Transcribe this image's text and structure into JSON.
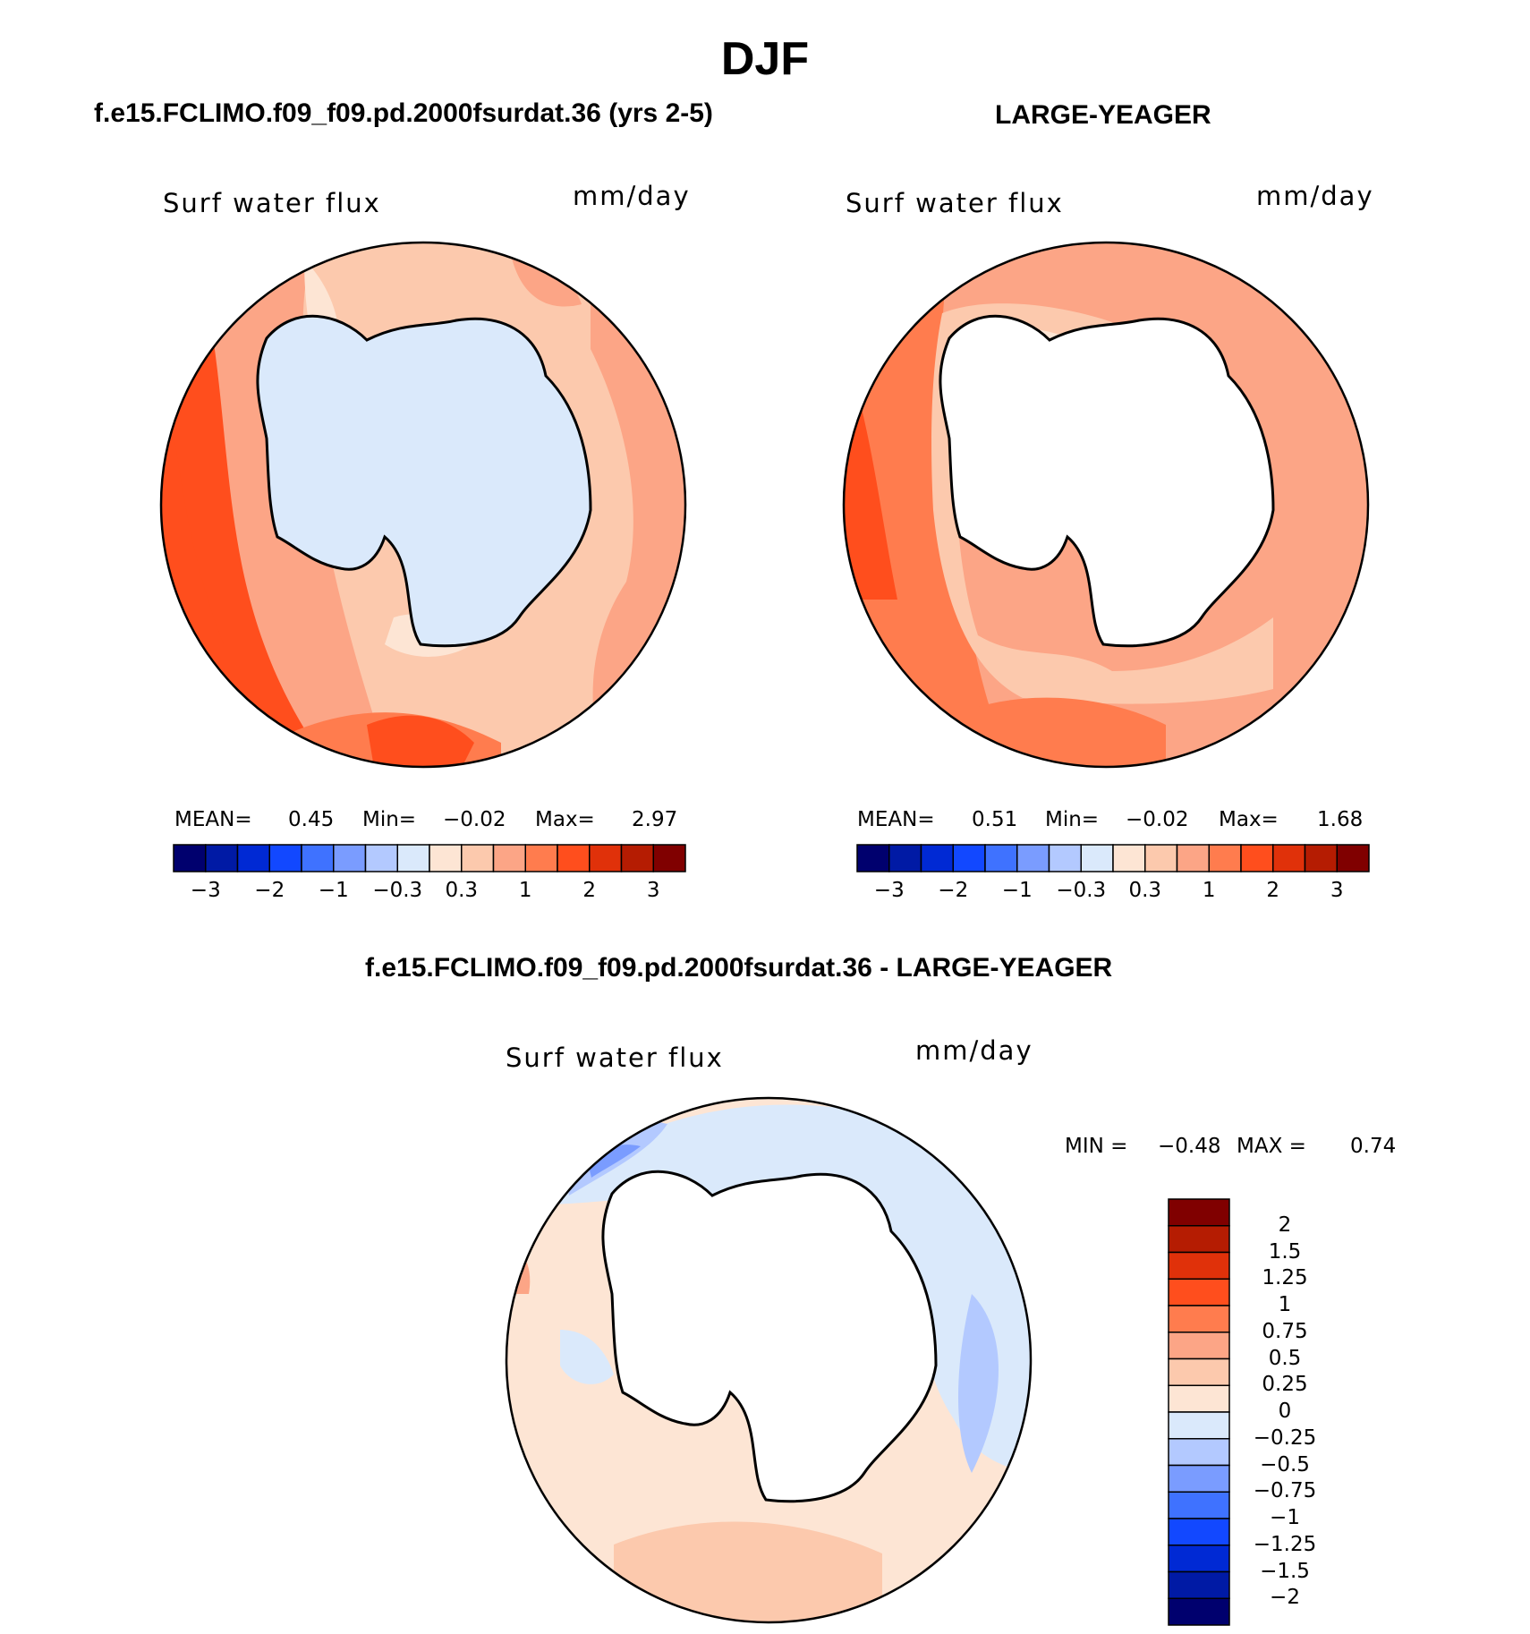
{
  "main_title": "DJF",
  "panels": [
    {
      "case_title": "f.e15.FCLIMO.f09_f09.pd.2000fsurdat.36 (yrs 2-5)",
      "variable": "Surf water flux",
      "units": "mm/day",
      "stats": {
        "mean_label": "MEAN=",
        "mean_value": "0.45",
        "min_label": "Min=",
        "min_value": "−0.02",
        "max_label": "Max=",
        "max_value": "2.97"
      }
    },
    {
      "case_title": "LARGE-YEAGER",
      "variable": "Surf water flux",
      "units": "mm/day",
      "stats": {
        "mean_label": "MEAN=",
        "mean_value": "0.51",
        "min_label": "Min=",
        "min_value": "−0.02",
        "max_label": "Max=",
        "max_value": "1.68"
      }
    }
  ],
  "diff_panel": {
    "case_title": "f.e15.FCLIMO.f09_f09.pd.2000fsurdat.36 - LARGE-YEAGER",
    "variable": "Surf water flux",
    "units": "mm/day",
    "stats": {
      "min_label": "MIN =",
      "min_value": "−0.48",
      "max_label": "MAX =",
      "max_value": "0.74"
    }
  },
  "colorbar_h": {
    "colors": [
      "#00006e",
      "#001aa5",
      "#0029d4",
      "#1248ff",
      "#3f72ff",
      "#7a9cff",
      "#b3c9ff",
      "#dae9fb",
      "#fde5d4",
      "#fcc9ad",
      "#fca586",
      "#ff7c4e",
      "#ff4e1d",
      "#e0310a",
      "#b51c02",
      "#800000"
    ],
    "tick_labels": [
      "−3",
      "−2",
      "−1",
      "−0.3",
      "0.3",
      "1",
      "2",
      "3"
    ]
  },
  "colorbar_v": {
    "colors": [
      "#800000",
      "#b51c02",
      "#e0310a",
      "#ff4e1d",
      "#ff7c4e",
      "#fca586",
      "#fcc9ad",
      "#fde5d4",
      "#dae9fb",
      "#b3c9ff",
      "#7a9cff",
      "#3f72ff",
      "#1248ff",
      "#0029d4",
      "#001aa5",
      "#00006e"
    ],
    "tick_labels": [
      "2",
      "1.5",
      "1.25",
      "1",
      "0.75",
      "0.5",
      "0.25",
      "0",
      "−0.25",
      "−0.5",
      "−0.75",
      "−1",
      "−1.25",
      "−1.5",
      "−2"
    ]
  },
  "map_colors": {
    "ocean_light": "#fde5d4",
    "ocean_mid": "#fcc9ad",
    "ocean_med": "#fca586",
    "ocean_high": "#ff7c4e",
    "ocean_vhigh": "#ff4e1d",
    "land_panel1": "#dae9fb",
    "diff_neg": "#dae9fb",
    "diff_neg2": "#b3c9ff",
    "diff_neg3": "#7a9cff"
  }
}
